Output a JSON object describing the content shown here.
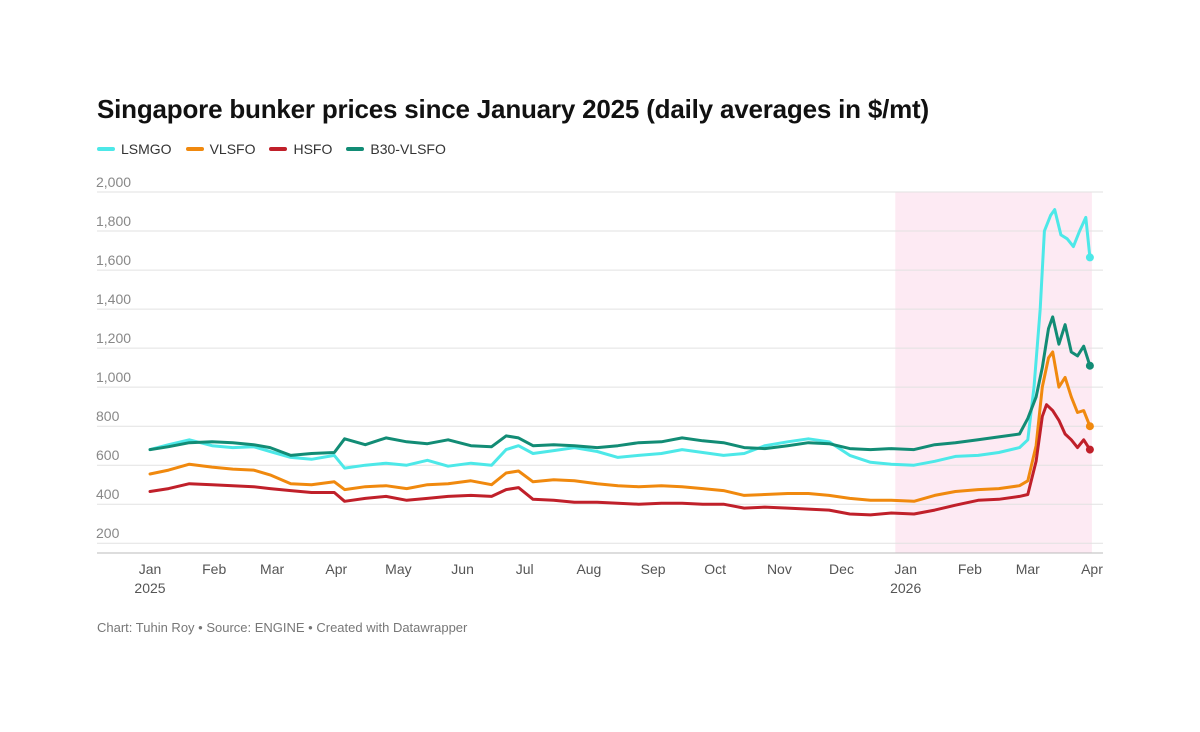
{
  "chart_data": {
    "type": "line",
    "title": "Singapore bunker prices since January 2025 (daily averages in $/mt)",
    "xlabel": "",
    "ylabel": "",
    "ylim": [
      200,
      2000
    ],
    "y_ticks": [
      "2,000",
      "1,800",
      "1,600",
      "1,400",
      "1,200",
      "1,000",
      "800",
      "600",
      "400",
      "200"
    ],
    "y_tick_values": [
      2000,
      1800,
      1600,
      1400,
      1200,
      1000,
      800,
      600,
      400,
      200
    ],
    "x_ticks": [
      {
        "label": "Jan",
        "sub": "2025",
        "month": 0
      },
      {
        "label": "Feb",
        "sub": "",
        "month": 1
      },
      {
        "label": "Mar",
        "sub": "",
        "month": 2
      },
      {
        "label": "Apr",
        "sub": "",
        "month": 3
      },
      {
        "label": "May",
        "sub": "",
        "month": 4
      },
      {
        "label": "Jun",
        "sub": "",
        "month": 5
      },
      {
        "label": "Jul",
        "sub": "",
        "month": 6
      },
      {
        "label": "Aug",
        "sub": "",
        "month": 7
      },
      {
        "label": "Sep",
        "sub": "",
        "month": 8
      },
      {
        "label": "Oct",
        "sub": "",
        "month": 9
      },
      {
        "label": "Nov",
        "sub": "",
        "month": 10
      },
      {
        "label": "Dec",
        "sub": "",
        "month": 11
      },
      {
        "label": "Jan",
        "sub": "2026",
        "month": 12
      },
      {
        "label": "Feb",
        "sub": "",
        "month": 13
      },
      {
        "label": "Mar",
        "sub": "",
        "month": 14
      },
      {
        "label": "Apr",
        "sub": "",
        "month": 15
      }
    ],
    "highlight_range": [
      "2025-12-27",
      "2026-03-31"
    ],
    "grid": true,
    "legend_position": "top-left",
    "series": [
      {
        "name": "LSMGO",
        "color": "#4de8e8",
        "points": [
          [
            "2025-01-01",
            680
          ],
          [
            "2025-01-10",
            705
          ],
          [
            "2025-01-20",
            730
          ],
          [
            "2025-01-31",
            700
          ],
          [
            "2025-02-10",
            690
          ],
          [
            "2025-02-20",
            695
          ],
          [
            "2025-02-28",
            670
          ],
          [
            "2025-03-10",
            640
          ],
          [
            "2025-03-20",
            630
          ],
          [
            "2025-03-31",
            650
          ],
          [
            "2025-04-05",
            585
          ],
          [
            "2025-04-15",
            600
          ],
          [
            "2025-04-25",
            610
          ],
          [
            "2025-05-05",
            600
          ],
          [
            "2025-05-15",
            625
          ],
          [
            "2025-05-25",
            595
          ],
          [
            "2025-06-05",
            610
          ],
          [
            "2025-06-15",
            600
          ],
          [
            "2025-06-22",
            680
          ],
          [
            "2025-06-28",
            700
          ],
          [
            "2025-07-05",
            660
          ],
          [
            "2025-07-15",
            675
          ],
          [
            "2025-07-25",
            690
          ],
          [
            "2025-08-05",
            670
          ],
          [
            "2025-08-15",
            640
          ],
          [
            "2025-08-25",
            650
          ],
          [
            "2025-09-05",
            660
          ],
          [
            "2025-09-15",
            680
          ],
          [
            "2025-09-25",
            665
          ],
          [
            "2025-10-05",
            650
          ],
          [
            "2025-10-15",
            660
          ],
          [
            "2025-10-25",
            700
          ],
          [
            "2025-11-05",
            720
          ],
          [
            "2025-11-15",
            735
          ],
          [
            "2025-11-25",
            720
          ],
          [
            "2025-12-05",
            650
          ],
          [
            "2025-12-15",
            615
          ],
          [
            "2025-12-25",
            605
          ],
          [
            "2026-01-05",
            600
          ],
          [
            "2026-01-15",
            620
          ],
          [
            "2026-01-25",
            645
          ],
          [
            "2026-02-05",
            650
          ],
          [
            "2026-02-15",
            665
          ],
          [
            "2026-02-25",
            690
          ],
          [
            "2026-03-01",
            730
          ],
          [
            "2026-03-04",
            1000
          ],
          [
            "2026-03-07",
            1400
          ],
          [
            "2026-03-09",
            1800
          ],
          [
            "2026-03-12",
            1880
          ],
          [
            "2026-03-14",
            1910
          ],
          [
            "2026-03-17",
            1780
          ],
          [
            "2026-03-20",
            1760
          ],
          [
            "2026-03-23",
            1720
          ],
          [
            "2026-03-26",
            1800
          ],
          [
            "2026-03-29",
            1870
          ],
          [
            "2026-03-31",
            1665
          ]
        ]
      },
      {
        "name": "VLSFO",
        "color": "#f0890e",
        "points": [
          [
            "2025-01-01",
            555
          ],
          [
            "2025-01-10",
            575
          ],
          [
            "2025-01-20",
            605
          ],
          [
            "2025-01-31",
            590
          ],
          [
            "2025-02-10",
            580
          ],
          [
            "2025-02-20",
            575
          ],
          [
            "2025-02-28",
            550
          ],
          [
            "2025-03-10",
            505
          ],
          [
            "2025-03-20",
            500
          ],
          [
            "2025-03-31",
            515
          ],
          [
            "2025-04-05",
            475
          ],
          [
            "2025-04-15",
            490
          ],
          [
            "2025-04-25",
            495
          ],
          [
            "2025-05-05",
            480
          ],
          [
            "2025-05-15",
            500
          ],
          [
            "2025-05-25",
            505
          ],
          [
            "2025-06-05",
            520
          ],
          [
            "2025-06-15",
            500
          ],
          [
            "2025-06-22",
            560
          ],
          [
            "2025-06-28",
            570
          ],
          [
            "2025-07-05",
            515
          ],
          [
            "2025-07-15",
            525
          ],
          [
            "2025-07-25",
            520
          ],
          [
            "2025-08-05",
            505
          ],
          [
            "2025-08-15",
            495
          ],
          [
            "2025-08-25",
            490
          ],
          [
            "2025-09-05",
            495
          ],
          [
            "2025-09-15",
            490
          ],
          [
            "2025-09-25",
            480
          ],
          [
            "2025-10-05",
            470
          ],
          [
            "2025-10-15",
            445
          ],
          [
            "2025-10-25",
            450
          ],
          [
            "2025-11-05",
            455
          ],
          [
            "2025-11-15",
            455
          ],
          [
            "2025-11-25",
            445
          ],
          [
            "2025-12-05",
            430
          ],
          [
            "2025-12-15",
            420
          ],
          [
            "2025-12-25",
            420
          ],
          [
            "2026-01-05",
            415
          ],
          [
            "2026-01-15",
            445
          ],
          [
            "2026-01-25",
            465
          ],
          [
            "2026-02-05",
            475
          ],
          [
            "2026-02-15",
            480
          ],
          [
            "2026-02-25",
            495
          ],
          [
            "2026-03-01",
            520
          ],
          [
            "2026-03-05",
            700
          ],
          [
            "2026-03-08",
            1000
          ],
          [
            "2026-03-11",
            1150
          ],
          [
            "2026-03-13",
            1180
          ],
          [
            "2026-03-16",
            1000
          ],
          [
            "2026-03-19",
            1050
          ],
          [
            "2026-03-22",
            950
          ],
          [
            "2026-03-25",
            870
          ],
          [
            "2026-03-28",
            880
          ],
          [
            "2026-03-31",
            800
          ]
        ]
      },
      {
        "name": "HSFO",
        "color": "#c0202a",
        "points": [
          [
            "2025-01-01",
            465
          ],
          [
            "2025-01-10",
            480
          ],
          [
            "2025-01-20",
            505
          ],
          [
            "2025-01-31",
            500
          ],
          [
            "2025-02-10",
            495
          ],
          [
            "2025-02-20",
            490
          ],
          [
            "2025-02-28",
            480
          ],
          [
            "2025-03-10",
            470
          ],
          [
            "2025-03-20",
            460
          ],
          [
            "2025-03-31",
            460
          ],
          [
            "2025-04-05",
            415
          ],
          [
            "2025-04-15",
            430
          ],
          [
            "2025-04-25",
            440
          ],
          [
            "2025-05-05",
            420
          ],
          [
            "2025-05-15",
            430
          ],
          [
            "2025-05-25",
            440
          ],
          [
            "2025-06-05",
            445
          ],
          [
            "2025-06-15",
            440
          ],
          [
            "2025-06-22",
            475
          ],
          [
            "2025-06-28",
            485
          ],
          [
            "2025-07-05",
            425
          ],
          [
            "2025-07-15",
            420
          ],
          [
            "2025-07-25",
            410
          ],
          [
            "2025-08-05",
            410
          ],
          [
            "2025-08-15",
            405
          ],
          [
            "2025-08-25",
            400
          ],
          [
            "2025-09-05",
            405
          ],
          [
            "2025-09-15",
            405
          ],
          [
            "2025-09-25",
            400
          ],
          [
            "2025-10-05",
            400
          ],
          [
            "2025-10-15",
            380
          ],
          [
            "2025-10-25",
            385
          ],
          [
            "2025-11-05",
            380
          ],
          [
            "2025-11-15",
            375
          ],
          [
            "2025-11-25",
            370
          ],
          [
            "2025-12-05",
            350
          ],
          [
            "2025-12-15",
            345
          ],
          [
            "2025-12-25",
            355
          ],
          [
            "2026-01-05",
            350
          ],
          [
            "2026-01-15",
            370
          ],
          [
            "2026-01-25",
            395
          ],
          [
            "2026-02-05",
            420
          ],
          [
            "2026-02-15",
            425
          ],
          [
            "2026-02-25",
            440
          ],
          [
            "2026-03-01",
            450
          ],
          [
            "2026-03-05",
            620
          ],
          [
            "2026-03-08",
            850
          ],
          [
            "2026-03-10",
            910
          ],
          [
            "2026-03-13",
            880
          ],
          [
            "2026-03-16",
            830
          ],
          [
            "2026-03-19",
            760
          ],
          [
            "2026-03-22",
            730
          ],
          [
            "2026-03-25",
            690
          ],
          [
            "2026-03-28",
            730
          ],
          [
            "2026-03-31",
            680
          ]
        ]
      },
      {
        "name": "B30-VLSFO",
        "color": "#128c75",
        "points": [
          [
            "2025-01-01",
            680
          ],
          [
            "2025-01-10",
            695
          ],
          [
            "2025-01-20",
            715
          ],
          [
            "2025-01-31",
            720
          ],
          [
            "2025-02-10",
            715
          ],
          [
            "2025-02-20",
            705
          ],
          [
            "2025-02-28",
            690
          ],
          [
            "2025-03-10",
            650
          ],
          [
            "2025-03-20",
            660
          ],
          [
            "2025-03-31",
            665
          ],
          [
            "2025-04-05",
            735
          ],
          [
            "2025-04-15",
            705
          ],
          [
            "2025-04-25",
            740
          ],
          [
            "2025-05-05",
            720
          ],
          [
            "2025-05-15",
            710
          ],
          [
            "2025-05-25",
            730
          ],
          [
            "2025-06-05",
            700
          ],
          [
            "2025-06-15",
            695
          ],
          [
            "2025-06-22",
            750
          ],
          [
            "2025-06-28",
            740
          ],
          [
            "2025-07-05",
            700
          ],
          [
            "2025-07-15",
            705
          ],
          [
            "2025-07-25",
            700
          ],
          [
            "2025-08-05",
            690
          ],
          [
            "2025-08-15",
            700
          ],
          [
            "2025-08-25",
            715
          ],
          [
            "2025-09-05",
            720
          ],
          [
            "2025-09-15",
            740
          ],
          [
            "2025-09-25",
            725
          ],
          [
            "2025-10-05",
            715
          ],
          [
            "2025-10-15",
            690
          ],
          [
            "2025-10-25",
            685
          ],
          [
            "2025-11-05",
            700
          ],
          [
            "2025-11-15",
            715
          ],
          [
            "2025-11-25",
            710
          ],
          [
            "2025-12-05",
            685
          ],
          [
            "2025-12-15",
            680
          ],
          [
            "2025-12-25",
            685
          ],
          [
            "2026-01-05",
            680
          ],
          [
            "2026-01-15",
            705
          ],
          [
            "2026-01-25",
            715
          ],
          [
            "2026-02-05",
            730
          ],
          [
            "2026-02-15",
            745
          ],
          [
            "2026-02-25",
            760
          ],
          [
            "2026-03-01",
            840
          ],
          [
            "2026-03-05",
            950
          ],
          [
            "2026-03-08",
            1100
          ],
          [
            "2026-03-11",
            1300
          ],
          [
            "2026-03-13",
            1360
          ],
          [
            "2026-03-16",
            1220
          ],
          [
            "2026-03-19",
            1320
          ],
          [
            "2026-03-22",
            1180
          ],
          [
            "2026-03-25",
            1160
          ],
          [
            "2026-03-28",
            1210
          ],
          [
            "2026-03-31",
            1110
          ]
        ]
      }
    ]
  },
  "legend": [
    {
      "label": "LSMGO",
      "color": "#4de8e8"
    },
    {
      "label": "VLSFO",
      "color": "#f0890e"
    },
    {
      "label": "HSFO",
      "color": "#c0202a"
    },
    {
      "label": "B30-VLSFO",
      "color": "#128c75"
    }
  ],
  "footer": "Chart: Tuhin Roy • Source: ENGINE • Created with Datawrapper"
}
